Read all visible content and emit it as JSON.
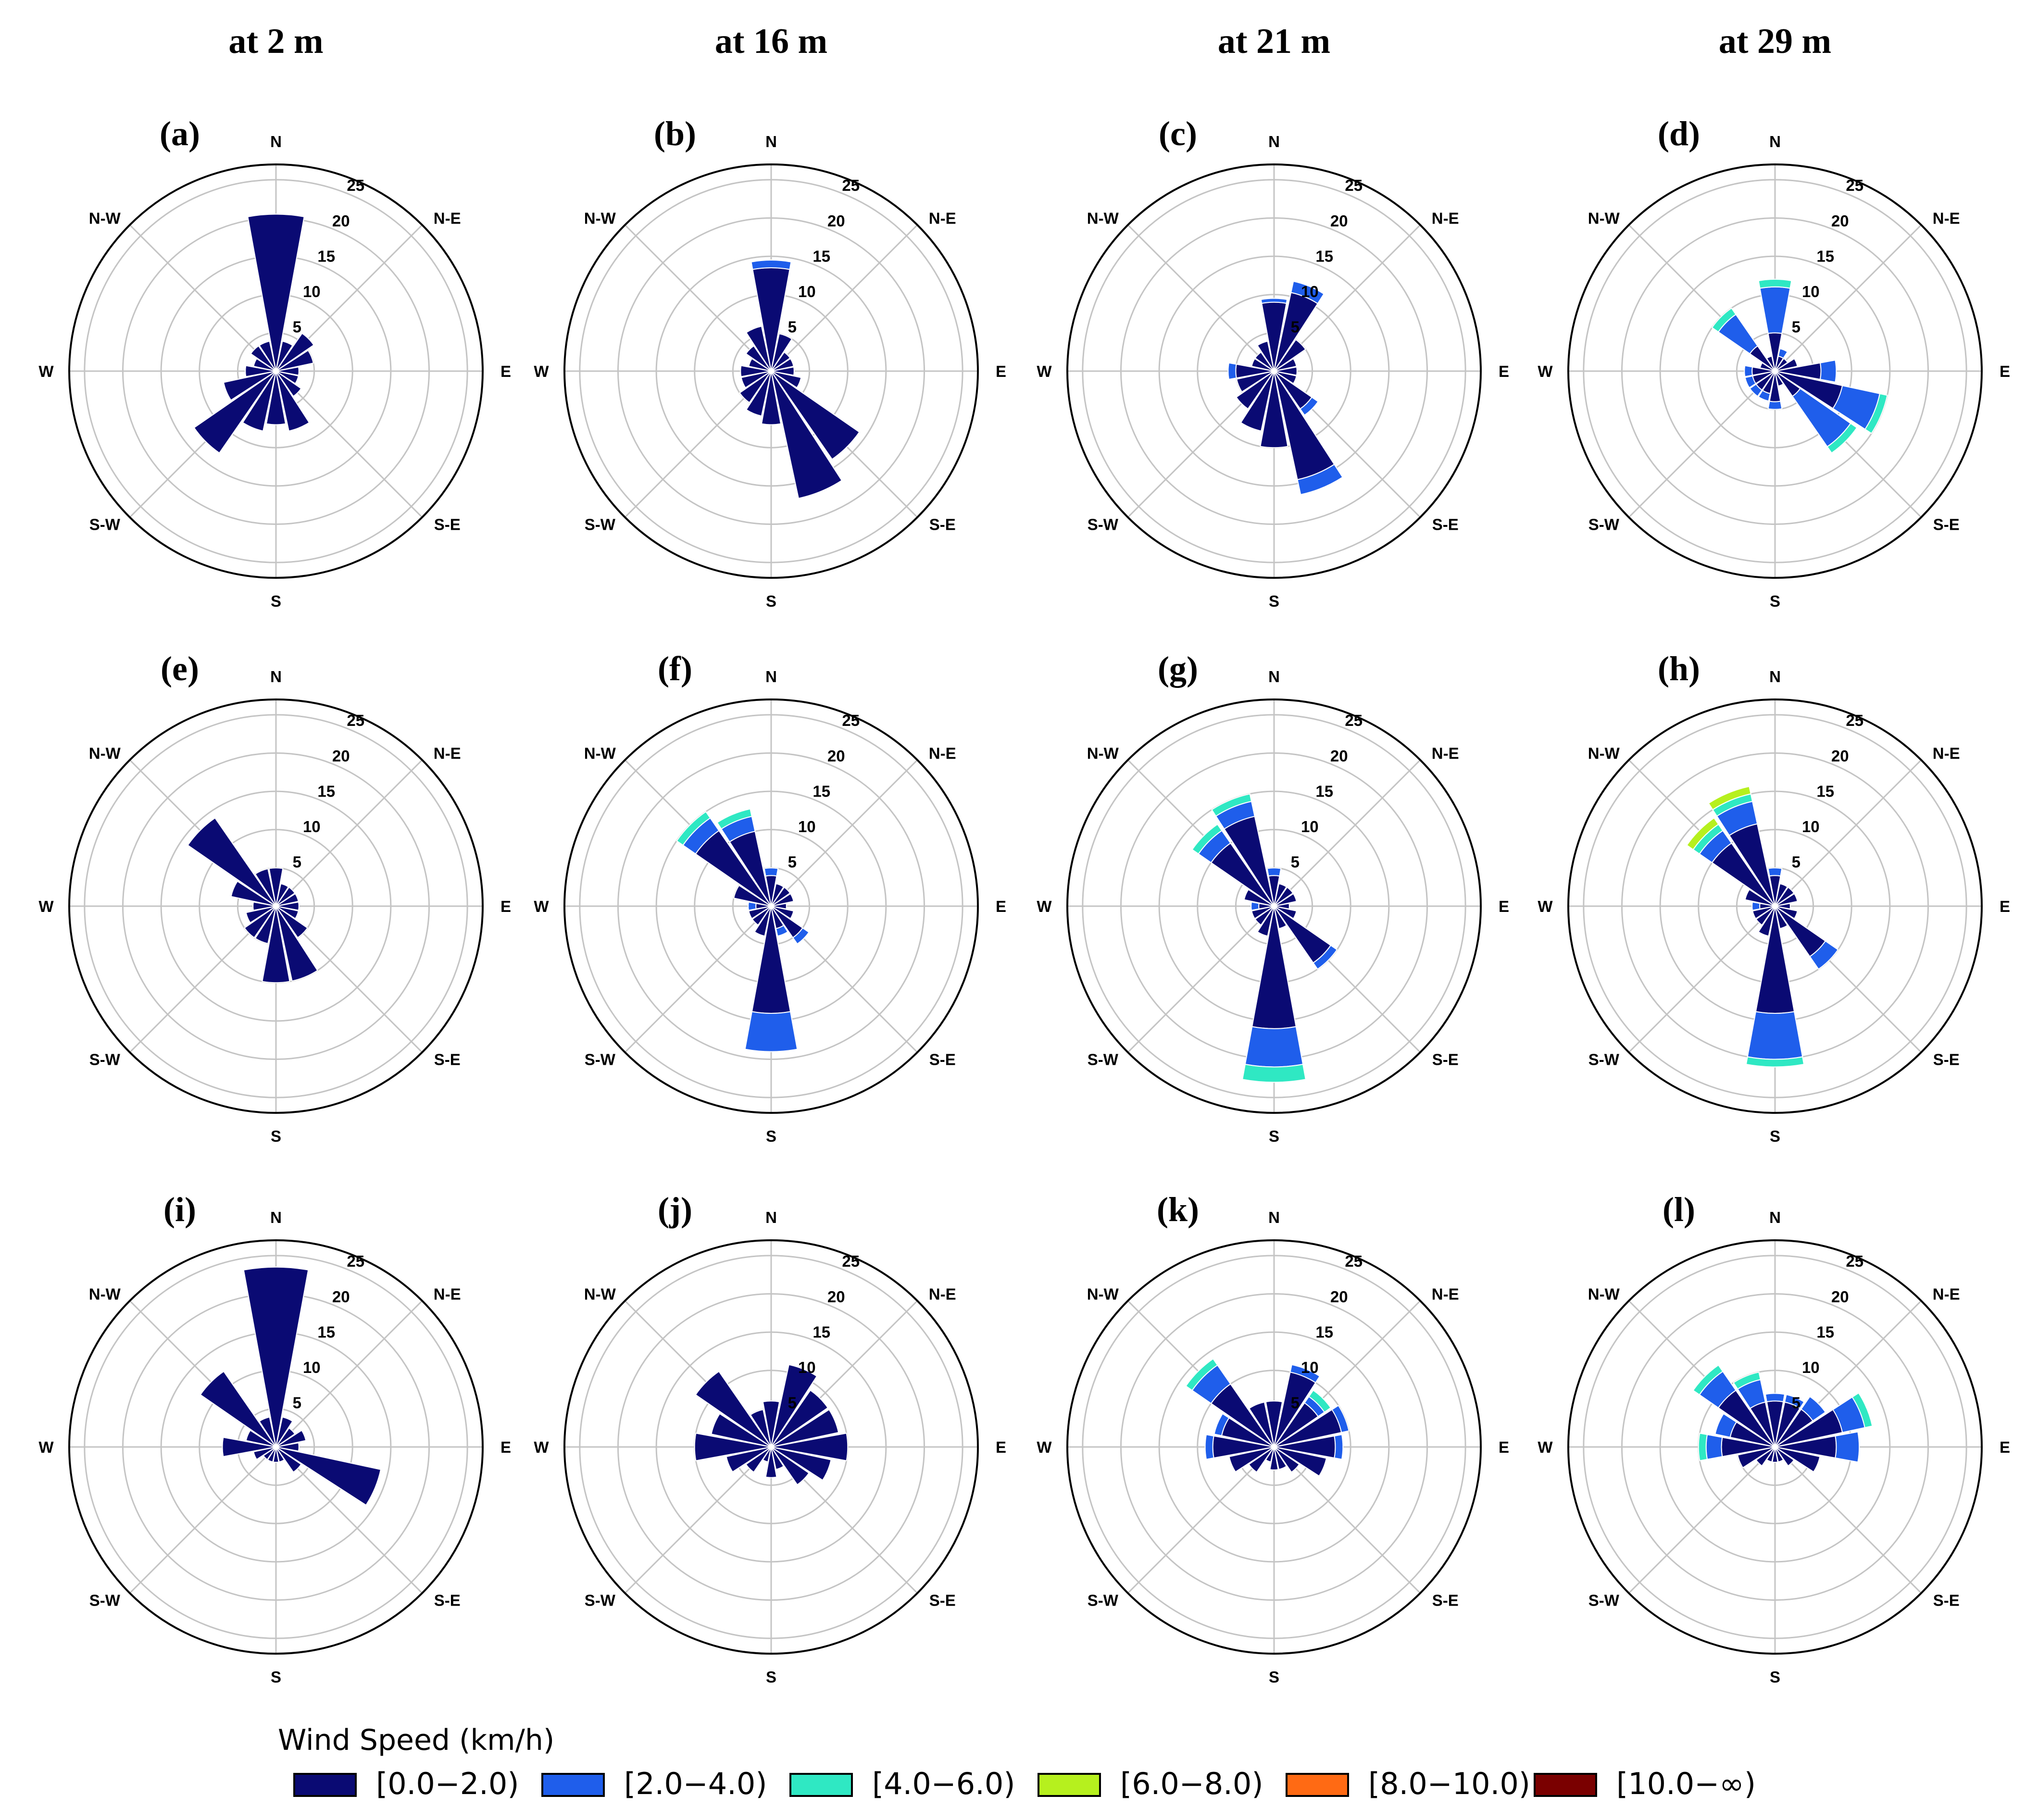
{
  "chart_data": {
    "type": "windrose",
    "column_titles": [
      "at 2 m",
      "at 16 m",
      "at 21 m",
      "at 29 m"
    ],
    "directions": [
      "N",
      "N-E",
      "E",
      "S-E",
      "S",
      "S-W",
      "W",
      "N-W"
    ],
    "sector_count": 16,
    "radial_ticks": [
      "5",
      "10",
      "15",
      "20",
      "25"
    ],
    "rmax": 27,
    "legend": {
      "title": "Wind Speed (km/h)",
      "bins": [
        {
          "label": "[0.0−2.0)",
          "color": "#0a0a73"
        },
        {
          "label": "[2.0−4.0)",
          "color": "#1f5eeb"
        },
        {
          "label": "[4.0−6.0)",
          "color": "#2fe8c3"
        },
        {
          "label": "[6.0−8.0)",
          "color": "#b6f01e"
        },
        {
          "label": "[8.0−10.0)",
          "color": "#ff6a14"
        },
        {
          "label": "[10.0−∞)",
          "color": "#7a0000"
        }
      ]
    },
    "panels": [
      {
        "label": "(a)",
        "row": 0,
        "col": 0,
        "sectors": [
          [
            [
              20.5
            ]
          ],
          [
            [
              4
            ]
          ],
          [
            [
              6
            ]
          ],
          [
            [
              5
            ]
          ],
          [
            [
              3
            ]
          ],
          [
            [
              3
            ]
          ],
          [
            [
              4
            ]
          ],
          [
            [
              8
            ]
          ],
          [
            [
              7
            ]
          ],
          [
            [
              8
            ]
          ],
          [
            [
              13
            ]
          ],
          [
            [
              7
            ]
          ],
          [
            [
              4
            ]
          ],
          [
            [
              3
            ]
          ],
          [
            [
              4
            ]
          ],
          [
            [
              4
            ]
          ]
        ]
      },
      {
        "label": "(b)",
        "row": 0,
        "col": 1,
        "sectors": [
          [
            [
              13.5,
              1
            ]
          ],
          [
            [
              5
            ]
          ],
          [
            [
              3
            ]
          ],
          [
            [
              3
            ]
          ],
          [
            [
              3
            ]
          ],
          [
            [
              4
            ]
          ],
          [
            [
              14
            ]
          ],
          [
            [
              17
            ]
          ],
          [
            [
              7
            ]
          ],
          [
            [
              6
            ]
          ],
          [
            [
              5
            ]
          ],
          [
            [
              4
            ]
          ],
          [
            [
              4
            ]
          ],
          [
            [
              3
            ]
          ],
          [
            [
              4
            ]
          ],
          [
            [
              6
            ]
          ]
        ]
      },
      {
        "label": "(c)",
        "row": 0,
        "col": 2,
        "sectors": [
          [
            [
              9,
              0.5
            ]
          ],
          [
            [
              10.5,
              1.5
            ]
          ],
          [
            [
              5
            ]
          ],
          [
            [
              3
            ]
          ],
          [
            [
              3
            ]
          ],
          [
            [
              3
            ]
          ],
          [
            [
              6,
              1
            ]
          ],
          [
            [
              14.5,
              2
            ]
          ],
          [
            [
              10
            ]
          ],
          [
            [
              8
            ]
          ],
          [
            [
              6
            ]
          ],
          [
            [
              5
            ]
          ],
          [
            [
              5,
              1
            ]
          ],
          [
            [
              3
            ]
          ],
          [
            [
              3
            ]
          ],
          [
            [
              4
            ]
          ]
        ]
      },
      {
        "label": "(d)",
        "row": 0,
        "col": 2.99,
        "sectors": [
          [
            [
              5,
              6,
              1
            ]
          ],
          [
            [
              2,
              1
            ]
          ],
          [
            [
              2
            ]
          ],
          [
            [
              3
            ]
          ],
          [
            [
              6,
              2
            ]
          ],
          [
            [
              9,
              5,
              1
            ]
          ],
          [
            [
              4,
              8,
              1
            ]
          ],
          [
            [
              2
            ]
          ],
          [
            [
              4,
              1
            ]
          ],
          [
            [
              3,
              1
            ]
          ],
          [
            [
              3,
              1
            ]
          ],
          [
            [
              3,
              1
            ]
          ],
          [
            [
              3,
              1
            ]
          ],
          [
            [
              2
            ]
          ],
          [
            [
              4,
              5,
              1
            ]
          ],
          [
            [
              2
            ]
          ]
        ]
      }
    ]
  }
}
